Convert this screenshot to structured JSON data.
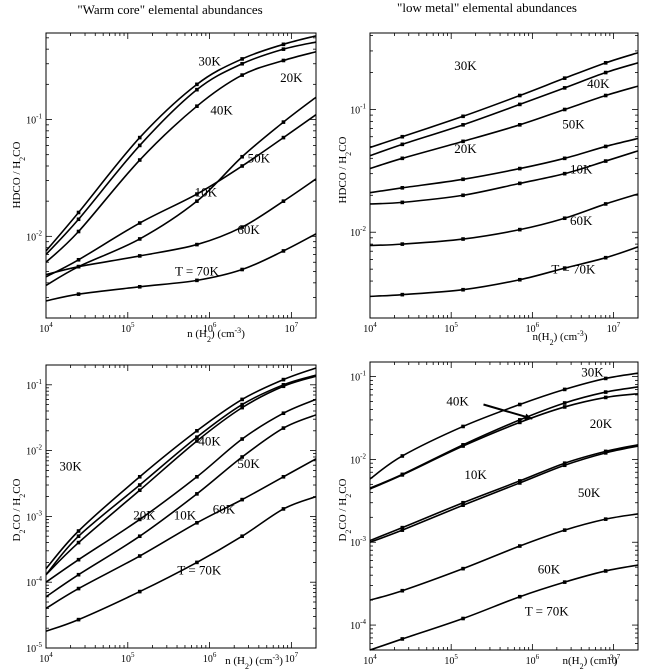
{
  "chart_data": [
    {
      "type": "line",
      "title": "\"Warm core\" elemental abundances",
      "xlabel": "n (H₂) (cm⁻³)",
      "ylabel": "HDCO / H₂CO",
      "xscale": "log",
      "yscale": "log",
      "xlim": [
        10000,
        20000000
      ],
      "ylim": [
        0.002,
        0.55
      ],
      "xticks": [
        {
          "v": 10000,
          "m": "10",
          "e": "4"
        },
        {
          "v": 100000,
          "m": "10",
          "e": "5"
        },
        {
          "v": 1000000,
          "m": "10",
          "e": "6"
        },
        {
          "v": 10000000,
          "m": "10",
          "e": "7"
        }
      ],
      "yticks": [
        {
          "v": 0.01,
          "m": "10",
          "e": "-2"
        },
        {
          "v": 0.1,
          "m": "10",
          "e": "-1"
        }
      ],
      "series": [
        {
          "name": "30K",
          "label_at": [
            1000000.0,
            0.29
          ],
          "x": [
            10000,
            25000,
            140000,
            700000,
            2500000,
            8000000,
            20000000
          ],
          "y": [
            0.0075,
            0.016,
            0.07,
            0.2,
            0.33,
            0.44,
            0.52
          ]
        },
        {
          "name": "20K",
          "label_at": [
            10000000.0,
            0.21
          ],
          "x": [
            10000,
            25000,
            140000,
            700000,
            2500000,
            8000000,
            20000000
          ],
          "y": [
            0.007,
            0.014,
            0.06,
            0.18,
            0.3,
            0.4,
            0.46
          ]
        },
        {
          "name": "40K",
          "label_at": [
            1400000.0,
            0.11
          ],
          "x": [
            10000,
            25000,
            140000,
            700000,
            2500000,
            8000000,
            20000000
          ],
          "y": [
            0.006,
            0.011,
            0.045,
            0.13,
            0.24,
            0.32,
            0.38
          ]
        },
        {
          "name": "50K",
          "label_at": [
            4000000.0,
            0.043
          ],
          "x": [
            10000,
            25000,
            140000,
            700000,
            2500000,
            8000000,
            20000000
          ],
          "y": [
            0.0038,
            0.0055,
            0.0095,
            0.02,
            0.048,
            0.095,
            0.155
          ]
        },
        {
          "name": "10K",
          "label_at": [
            900000.0,
            0.022
          ],
          "x": [
            10000,
            25000,
            140000,
            700000,
            2500000,
            8000000,
            20000000
          ],
          "y": [
            0.0045,
            0.0063,
            0.013,
            0.023,
            0.04,
            0.07,
            0.11
          ]
        },
        {
          "name": "60K",
          "label_at": [
            3000000.0,
            0.0105
          ],
          "x": [
            10000,
            25000,
            140000,
            700000,
            2500000,
            8000000,
            20000000
          ],
          "y": [
            0.0047,
            0.0055,
            0.0068,
            0.0085,
            0.012,
            0.02,
            0.031
          ]
        },
        {
          "name": "T = 70K",
          "label_at": [
            700000.0,
            0.0046
          ],
          "x": [
            10000,
            25000,
            140000,
            700000,
            2500000,
            8000000,
            20000000
          ],
          "y": [
            0.0028,
            0.0032,
            0.0037,
            0.0042,
            0.0052,
            0.0075,
            0.0105
          ]
        }
      ]
    },
    {
      "type": "line",
      "title": "\"low metal\" elemental abundances",
      "xlabel": "n(H₂) (cm⁻³)",
      "ylabel": "HDCO / H₂CO",
      "xscale": "log",
      "yscale": "log",
      "xlim": [
        10000,
        20000000
      ],
      "ylim": [
        0.002,
        0.42
      ],
      "xticks": [
        {
          "v": 10000,
          "m": "10",
          "e": "4"
        },
        {
          "v": 100000,
          "m": "10",
          "e": "5"
        },
        {
          "v": 1000000,
          "m": "10",
          "e": "6"
        },
        {
          "v": 10000000,
          "m": "10",
          "e": "7"
        }
      ],
      "yticks": [
        {
          "v": 0.01,
          "m": "10",
          "e": "-2"
        },
        {
          "v": 0.1,
          "m": "10",
          "e": "-1"
        }
      ],
      "series": [
        {
          "name": "30K",
          "label_at": [
            150000.0,
            0.21
          ],
          "x": [
            10000,
            25000,
            140000,
            700000,
            2500000,
            8000000,
            20000000
          ],
          "y": [
            0.049,
            0.06,
            0.088,
            0.13,
            0.18,
            0.24,
            0.29
          ]
        },
        {
          "name": "40K",
          "label_at": [
            6500000.0,
            0.15
          ],
          "x": [
            10000,
            25000,
            140000,
            700000,
            2500000,
            8000000,
            20000000
          ],
          "y": [
            0.042,
            0.052,
            0.075,
            0.11,
            0.15,
            0.2,
            0.24
          ]
        },
        {
          "name": "20K",
          "label_at": [
            150000.0,
            0.044
          ],
          "x": [
            10000,
            25000,
            140000,
            700000,
            2500000,
            8000000,
            20000000
          ],
          "y": [
            0.033,
            0.04,
            0.055,
            0.075,
            0.1,
            0.13,
            0.155
          ]
        },
        {
          "name": "50K",
          "label_at": [
            3200000.0,
            0.07
          ],
          "x": [
            10000,
            25000,
            140000,
            700000,
            2500000,
            8000000,
            20000000
          ],
          "y": [
            0.021,
            0.023,
            0.027,
            0.033,
            0.04,
            0.05,
            0.058
          ]
        },
        {
          "name": "10K",
          "label_at": [
            4000000.0,
            0.03
          ],
          "x": [
            10000,
            25000,
            140000,
            700000,
            2500000,
            8000000,
            20000000
          ],
          "y": [
            0.017,
            0.0175,
            0.02,
            0.025,
            0.03,
            0.038,
            0.046
          ]
        },
        {
          "name": "60K",
          "label_at": [
            4000000.0,
            0.0115
          ],
          "x": [
            10000,
            25000,
            140000,
            700000,
            2500000,
            8000000,
            20000000
          ],
          "y": [
            0.0078,
            0.008,
            0.0088,
            0.0105,
            0.013,
            0.017,
            0.0205
          ]
        },
        {
          "name": "T = 70K",
          "label_at": [
            3200000.0,
            0.0046
          ],
          "x": [
            10000,
            25000,
            140000,
            700000,
            2500000,
            8000000,
            20000000
          ],
          "y": [
            0.003,
            0.0031,
            0.0034,
            0.0041,
            0.0051,
            0.0062,
            0.0076
          ]
        }
      ]
    },
    {
      "type": "line",
      "title": "",
      "xlabel": "n (H₂) (cm⁻³)",
      "ylabel": "D₂CO / H₂CO",
      "xscale": "log",
      "yscale": "log",
      "xlim": [
        10000,
        20000000
      ],
      "ylim": [
        1e-05,
        0.2
      ],
      "xticks": [
        {
          "v": 10000,
          "m": "10",
          "e": "4"
        },
        {
          "v": 100000,
          "m": "10",
          "e": "5"
        },
        {
          "v": 1000000,
          "m": "10",
          "e": "6"
        },
        {
          "v": 10000000,
          "m": "10",
          "e": "7"
        }
      ],
      "yticks": [
        {
          "v": 1e-05,
          "m": "10",
          "e": "-5"
        },
        {
          "v": 0.0001,
          "m": "10",
          "e": "-4"
        },
        {
          "v": 0.001,
          "m": "10",
          "e": "-3"
        },
        {
          "v": 0.01,
          "m": "10",
          "e": "-2"
        },
        {
          "v": 0.1,
          "m": "10",
          "e": "-1"
        }
      ],
      "series": [
        {
          "name": "30K",
          "label_at": [
            20000.0,
            0.005
          ],
          "x": [
            10000,
            25000,
            140000,
            700000,
            2500000,
            8000000,
            20000000
          ],
          "y": [
            0.00016,
            0.0006,
            0.004,
            0.02,
            0.06,
            0.12,
            0.18
          ]
        },
        {
          "name": "20K",
          "label_at": [
            160000.0,
            0.0009
          ],
          "x": [
            10000,
            25000,
            140000,
            700000,
            2500000,
            8000000,
            20000000
          ],
          "y": [
            0.00013,
            0.0005,
            0.003,
            0.016,
            0.05,
            0.1,
            0.14
          ]
        },
        {
          "name": "40K",
          "label_at": [
            1000000.0,
            0.012
          ],
          "x": [
            10000,
            25000,
            140000,
            700000,
            2500000,
            8000000,
            20000000
          ],
          "y": [
            0.00013,
            0.0004,
            0.0025,
            0.014,
            0.045,
            0.095,
            0.135
          ]
        },
        {
          "name": "10K",
          "label_at": [
            500000.0,
            0.0009
          ],
          "x": [
            10000,
            25000,
            140000,
            700000,
            2500000,
            8000000,
            20000000
          ],
          "y": [
            0.0001,
            0.00022,
            0.0009,
            0.004,
            0.015,
            0.037,
            0.06
          ]
        },
        {
          "name": "50K",
          "label_at": [
            3000000.0,
            0.0054
          ],
          "x": [
            10000,
            25000,
            140000,
            700000,
            2500000,
            8000000,
            20000000
          ],
          "y": [
            6e-05,
            0.00013,
            0.0005,
            0.0022,
            0.008,
            0.022,
            0.035
          ]
        },
        {
          "name": "60K",
          "label_at": [
            1500000.0,
            0.0011
          ],
          "x": [
            10000,
            25000,
            140000,
            700000,
            2500000,
            8000000,
            20000000
          ],
          "y": [
            4e-05,
            8e-05,
            0.00025,
            0.0008,
            0.0018,
            0.004,
            0.0075
          ]
        },
        {
          "name": "T = 70K",
          "label_at": [
            750000.0,
            0.00013
          ],
          "x": [
            10000,
            25000,
            140000,
            700000,
            2500000,
            8000000,
            20000000
          ],
          "y": [
            1.8e-05,
            2.7e-05,
            7.2e-05,
            0.0002,
            0.0005,
            0.0013,
            0.002
          ]
        }
      ]
    },
    {
      "type": "line",
      "title": "",
      "xlabel": "n(H₂) (cm⁻³)",
      "ylabel": "D₂CO / H₂CO",
      "xscale": "log",
      "yscale": "log",
      "xlim": [
        10000,
        20000000
      ],
      "ylim": [
        5e-05,
        0.15
      ],
      "xticks": [
        {
          "v": 10000,
          "m": "10",
          "e": "4"
        },
        {
          "v": 100000,
          "m": "10",
          "e": "5"
        },
        {
          "v": 1000000,
          "m": "10",
          "e": "6"
        },
        {
          "v": 10000000,
          "m": "10",
          "e": "7"
        }
      ],
      "yticks": [
        {
          "v": 0.0001,
          "m": "10",
          "e": "-4"
        },
        {
          "v": 0.001,
          "m": "10",
          "e": "-3"
        },
        {
          "v": 0.01,
          "m": "10",
          "e": "-2"
        },
        {
          "v": 0.1,
          "m": "10",
          "e": "-1"
        }
      ],
      "arrow": {
        "from": [
          250000.0,
          0.046
        ],
        "to": [
          1000000.0,
          0.031
        ]
      },
      "series": [
        {
          "name": "30K",
          "label_at": [
            5500000.0,
            0.1
          ],
          "x": [
            10000,
            25000,
            140000,
            700000,
            2500000,
            8000000,
            20000000
          ],
          "y": [
            0.0058,
            0.011,
            0.025,
            0.046,
            0.07,
            0.095,
            0.11
          ]
        },
        {
          "name": "40K",
          "label_at": [
            120000.0,
            0.045
          ],
          "x": [
            10000,
            25000,
            140000,
            700000,
            2500000,
            8000000,
            20000000
          ],
          "y": [
            0.0045,
            0.0066,
            0.015,
            0.03,
            0.048,
            0.065,
            0.075
          ]
        },
        {
          "name": "20K",
          "label_at": [
            7000000.0,
            0.024
          ],
          "x": [
            10000,
            25000,
            140000,
            700000,
            2500000,
            8000000,
            20000000
          ],
          "y": [
            0.0044,
            0.0065,
            0.0145,
            0.028,
            0.043,
            0.056,
            0.062
          ]
        },
        {
          "name": "10K",
          "label_at": [
            200000.0,
            0.0058
          ],
          "x": [
            10000,
            25000,
            140000,
            700000,
            2500000,
            8000000,
            20000000
          ],
          "y": [
            0.00105,
            0.0015,
            0.003,
            0.0055,
            0.009,
            0.0125,
            0.015
          ]
        },
        {
          "name": "50K",
          "label_at": [
            5000000.0,
            0.0035
          ],
          "x": [
            10000,
            25000,
            140000,
            700000,
            2500000,
            8000000,
            20000000
          ],
          "y": [
            0.001,
            0.0014,
            0.0028,
            0.0052,
            0.0085,
            0.012,
            0.0145
          ]
        },
        {
          "name": "60K",
          "label_at": [
            1600000.0,
            0.00042
          ],
          "x": [
            10000,
            25000,
            140000,
            700000,
            2500000,
            8000000,
            20000000
          ],
          "y": [
            0.0002,
            0.00026,
            0.00048,
            0.0009,
            0.0014,
            0.0019,
            0.0022
          ]
        },
        {
          "name": "T = 70K",
          "label_at": [
            1500000.0,
            0.00013
          ],
          "x": [
            10000,
            25000,
            140000,
            700000,
            2500000,
            8000000,
            20000000
          ],
          "y": [
            5e-05,
            6.8e-05,
            0.00012,
            0.00022,
            0.00033,
            0.00045,
            0.00053
          ]
        }
      ]
    }
  ]
}
